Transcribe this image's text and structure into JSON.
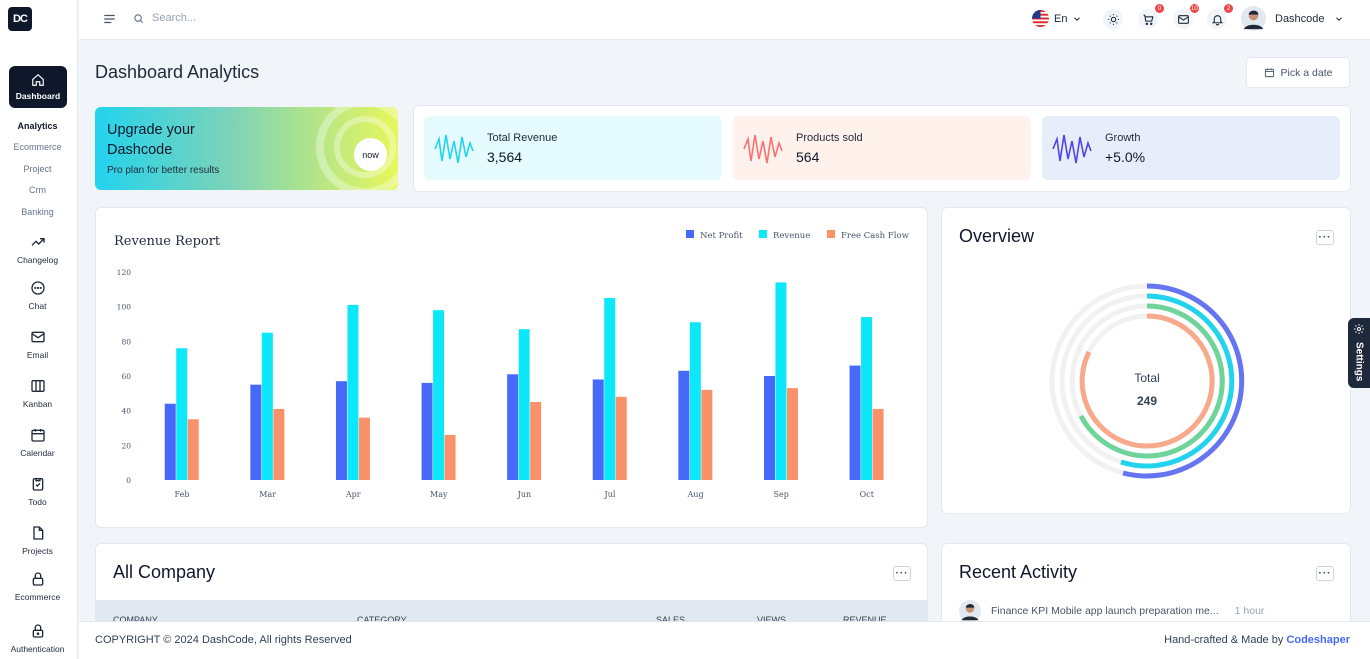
{
  "sidebar": {
    "logo": "DC",
    "active_item": "Dashboard",
    "sub_items": [
      "Analytics",
      "Ecommerce",
      "Project",
      "Crm",
      "Banking"
    ],
    "items": [
      {
        "label": "Changelog",
        "icon": "trending-icon"
      },
      {
        "label": "Chat",
        "icon": "chat-icon"
      },
      {
        "label": "Email",
        "icon": "mail-icon"
      },
      {
        "label": "Kanban",
        "icon": "kanban-icon"
      },
      {
        "label": "Calendar",
        "icon": "calendar-icon"
      },
      {
        "label": "Todo",
        "icon": "clipboard-icon"
      },
      {
        "label": "Projects",
        "icon": "file-icon"
      },
      {
        "label": "Ecommerce",
        "icon": "lock-icon"
      },
      {
        "label": "Authentication",
        "icon": "lock-icon"
      }
    ]
  },
  "topbar": {
    "search_placeholder": "Search...",
    "language": "En",
    "cart_count": "0",
    "mail_count": "10",
    "notif_count": "2",
    "user_name": "Dashcode"
  },
  "page": {
    "title": "Dashboard Analytics",
    "date_button": "Pick a date"
  },
  "promo": {
    "title": "Upgrade your Dashcode",
    "subtitle": "Pro plan for better results",
    "button": "now"
  },
  "stats": [
    {
      "label": "Total Revenue",
      "value": "3,564",
      "color": "#22d3ee",
      "bg": "#e0f7fa"
    },
    {
      "label": "Products sold",
      "value": "564",
      "color": "#f87171",
      "bg": "#fff1ec"
    },
    {
      "label": "Growth",
      "value": "+5.0%",
      "color": "#4f46e5",
      "bg": "#e9edfb"
    }
  ],
  "revenue": {
    "chart_data": {
      "type": "bar",
      "title": "Revenue Report",
      "categories": [
        "Feb",
        "Mar",
        "Apr",
        "May",
        "Jun",
        "Jul",
        "Aug",
        "Sep",
        "Oct"
      ],
      "series": [
        {
          "name": "Net Profit",
          "color": "#4669fa",
          "values": [
            44,
            55,
            57,
            56,
            61,
            58,
            63,
            60,
            66
          ]
        },
        {
          "name": "Revenue",
          "color": "#0ce7fa",
          "values": [
            76,
            85,
            101,
            98,
            87,
            105,
            91,
            114,
            94
          ]
        },
        {
          "name": "Free Cash Flow",
          "color": "#fa916b",
          "values": [
            35,
            41,
            36,
            26,
            45,
            48,
            52,
            53,
            41
          ]
        }
      ],
      "ylim": [
        0,
        120
      ],
      "yticks": [
        0,
        20,
        40,
        60,
        80,
        100,
        120
      ],
      "legend": "top-right"
    }
  },
  "overview": {
    "title": "Overview",
    "total_label": "Total",
    "total_value": "249"
  },
  "company": {
    "title": "All Company",
    "columns": [
      "COMPANY",
      "CATEGORY",
      "SALES",
      "VIEWS",
      "REVENUE"
    ]
  },
  "activity": {
    "title": "Recent Activity",
    "items": [
      {
        "text": "Finance KPI Mobile app launch preparation me...",
        "time": "1 hour"
      }
    ]
  },
  "settings_tab": "Settings",
  "footer": {
    "copyright": "COPYRIGHT © 2024 DashCode, All rights Reserved",
    "made_by": "Hand-crafted & Made by",
    "brand": "Codeshaper",
    "brand_color": "#4669fa"
  }
}
